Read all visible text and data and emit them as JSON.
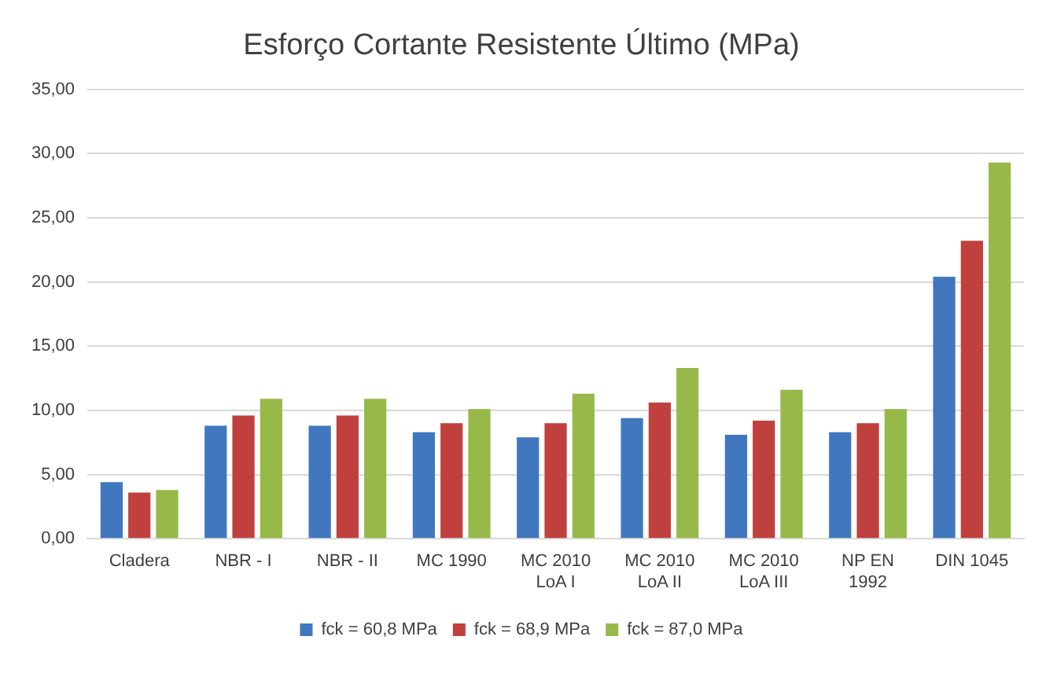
{
  "chart_data": {
    "type": "bar",
    "title": "Esforço Cortante Resistente Último (MPa)",
    "categories": [
      "Cladera",
      "NBR - I",
      "NBR - II",
      "MC 1990",
      "MC 2010 LoA I",
      "MC 2010 LoA II",
      "MC 2010 LoA III",
      "NP EN 1992",
      "DIN 1045"
    ],
    "series": [
      {
        "name": "fck = 60,8 MPa",
        "color": "#4077bf",
        "values": [
          4.4,
          8.8,
          8.8,
          8.3,
          7.9,
          9.4,
          8.1,
          8.3,
          20.4
        ]
      },
      {
        "name": "fck = 68,9 MPa",
        "color": "#c0403e",
        "values": [
          3.6,
          9.6,
          9.6,
          9.0,
          9.0,
          10.6,
          9.2,
          9.0,
          23.2
        ]
      },
      {
        "name": "fck = 87,0 MPa",
        "color": "#97b94a",
        "values": [
          3.8,
          10.9,
          10.9,
          10.1,
          11.3,
          13.3,
          11.6,
          10.1,
          29.3
        ]
      }
    ],
    "ylim": [
      0,
      35
    ],
    "yticks": [
      {
        "value": 0,
        "label": "0,00"
      },
      {
        "value": 5,
        "label": "5,00"
      },
      {
        "value": 10,
        "label": "10,00"
      },
      {
        "value": 15,
        "label": "15,00"
      },
      {
        "value": 20,
        "label": "20,00"
      },
      {
        "value": 25,
        "label": "25,00"
      },
      {
        "value": 30,
        "label": "30,00"
      },
      {
        "value": 35,
        "label": "35,00"
      }
    ],
    "grid": "y",
    "legend": "bottom"
  }
}
